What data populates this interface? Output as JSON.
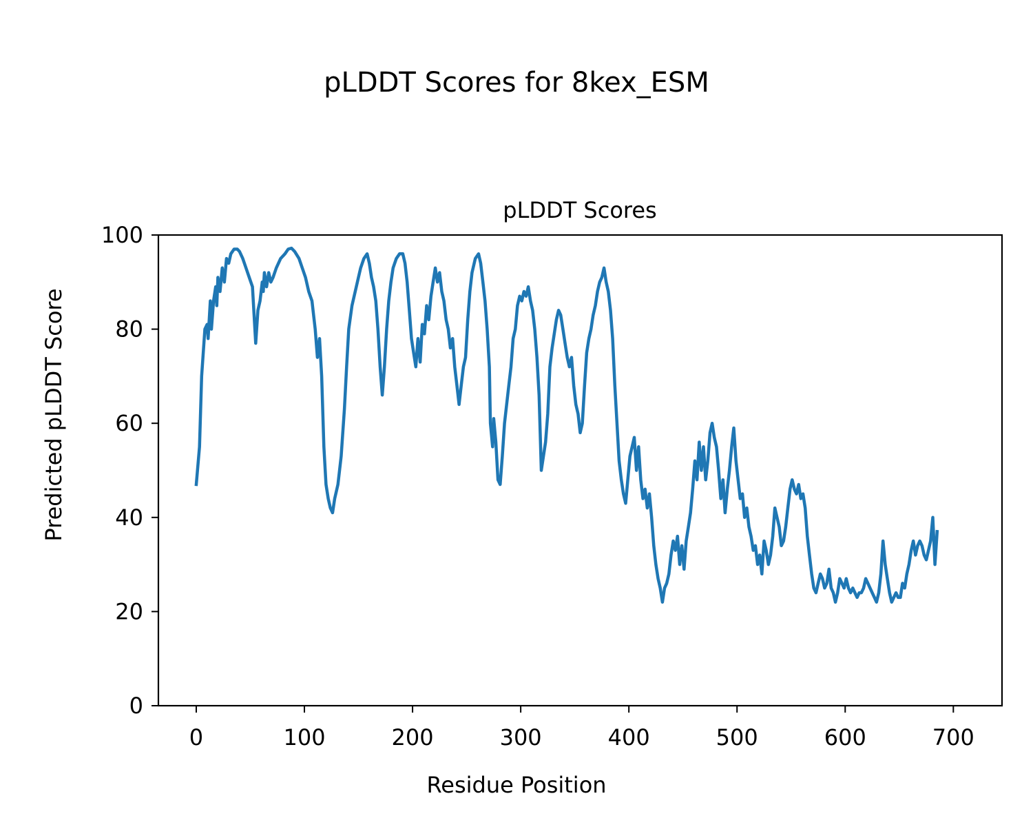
{
  "figure": {
    "suptitle": "pLDDT Scores for 8kex_ESM"
  },
  "chart_data": {
    "type": "line",
    "title": "pLDDT Scores",
    "xlabel": "Residue Position",
    "ylabel": "Predicted pLDDT Score",
    "xlim": [
      -35,
      745
    ],
    "ylim": [
      0,
      100
    ],
    "xticks": [
      0,
      100,
      200,
      300,
      400,
      500,
      600,
      700
    ],
    "yticks": [
      0,
      20,
      40,
      60,
      80,
      100
    ],
    "grid": false,
    "legend": "none",
    "series": [
      {
        "color": "#1f77b4",
        "points": [
          [
            0,
            47
          ],
          [
            3,
            55
          ],
          [
            5,
            70
          ],
          [
            8,
            80
          ],
          [
            10,
            81
          ],
          [
            11,
            78
          ],
          [
            12,
            82
          ],
          [
            13,
            86
          ],
          [
            14,
            80
          ],
          [
            16,
            86
          ],
          [
            18,
            89
          ],
          [
            19,
            85
          ],
          [
            20,
            91
          ],
          [
            22,
            88
          ],
          [
            24,
            93
          ],
          [
            26,
            90
          ],
          [
            28,
            95
          ],
          [
            30,
            94
          ],
          [
            32,
            96
          ],
          [
            35,
            97
          ],
          [
            38,
            97
          ],
          [
            40,
            96.5
          ],
          [
            43,
            95
          ],
          [
            46,
            93
          ],
          [
            49,
            91
          ],
          [
            52,
            89
          ],
          [
            55,
            77
          ],
          [
            57,
            84
          ],
          [
            59,
            86
          ],
          [
            61,
            90
          ],
          [
            62,
            88
          ],
          [
            63,
            92
          ],
          [
            65,
            89
          ],
          [
            67,
            92
          ],
          [
            69,
            90
          ],
          [
            71,
            91
          ],
          [
            74,
            93
          ],
          [
            78,
            95
          ],
          [
            82,
            96
          ],
          [
            85,
            97
          ],
          [
            88,
            97.2
          ],
          [
            91,
            96.5
          ],
          [
            95,
            95
          ],
          [
            98,
            93
          ],
          [
            101,
            91
          ],
          [
            104,
            88
          ],
          [
            107,
            86
          ],
          [
            110,
            80
          ],
          [
            112,
            74
          ],
          [
            114,
            78
          ],
          [
            116,
            70
          ],
          [
            118,
            55
          ],
          [
            120,
            47
          ],
          [
            122,
            44
          ],
          [
            124,
            42
          ],
          [
            126,
            41
          ],
          [
            128,
            44
          ],
          [
            131,
            47
          ],
          [
            134,
            53
          ],
          [
            137,
            63
          ],
          [
            139,
            72
          ],
          [
            141,
            80
          ],
          [
            144,
            85
          ],
          [
            147,
            88
          ],
          [
            150,
            91
          ],
          [
            152,
            93
          ],
          [
            155,
            95
          ],
          [
            158,
            96
          ],
          [
            160,
            94
          ],
          [
            162,
            91
          ],
          [
            164,
            89
          ],
          [
            166,
            86
          ],
          [
            168,
            80
          ],
          [
            170,
            72
          ],
          [
            172,
            66
          ],
          [
            174,
            72
          ],
          [
            176,
            80
          ],
          [
            178,
            86
          ],
          [
            180,
            90
          ],
          [
            182,
            93
          ],
          [
            185,
            95
          ],
          [
            188,
            96
          ],
          [
            191,
            96
          ],
          [
            193,
            94
          ],
          [
            195,
            90
          ],
          [
            197,
            84
          ],
          [
            199,
            78
          ],
          [
            201,
            75
          ],
          [
            203,
            72
          ],
          [
            205,
            78
          ],
          [
            207,
            73
          ],
          [
            209,
            81
          ],
          [
            211,
            79
          ],
          [
            213,
            85
          ],
          [
            215,
            82
          ],
          [
            217,
            87
          ],
          [
            219,
            90
          ],
          [
            221,
            93
          ],
          [
            223,
            90
          ],
          [
            225,
            92
          ],
          [
            227,
            88
          ],
          [
            229,
            86
          ],
          [
            231,
            82
          ],
          [
            233,
            80
          ],
          [
            235,
            76
          ],
          [
            237,
            78
          ],
          [
            239,
            72
          ],
          [
            241,
            68
          ],
          [
            243,
            64
          ],
          [
            245,
            68
          ],
          [
            247,
            72
          ],
          [
            249,
            74
          ],
          [
            251,
            82
          ],
          [
            253,
            88
          ],
          [
            255,
            92
          ],
          [
            258,
            95
          ],
          [
            261,
            96
          ],
          [
            263,
            94
          ],
          [
            265,
            90
          ],
          [
            267,
            86
          ],
          [
            269,
            80
          ],
          [
            271,
            72
          ],
          [
            272,
            60
          ],
          [
            274,
            55
          ],
          [
            275,
            61
          ],
          [
            277,
            56
          ],
          [
            279,
            48
          ],
          [
            281,
            47
          ],
          [
            283,
            53
          ],
          [
            285,
            60
          ],
          [
            287,
            64
          ],
          [
            289,
            68
          ],
          [
            291,
            72
          ],
          [
            293,
            78
          ],
          [
            295,
            80
          ],
          [
            297,
            85
          ],
          [
            299,
            87
          ],
          [
            301,
            86
          ],
          [
            303,
            88
          ],
          [
            305,
            87
          ],
          [
            307,
            89
          ],
          [
            309,
            86
          ],
          [
            311,
            84
          ],
          [
            313,
            80
          ],
          [
            315,
            74
          ],
          [
            317,
            66
          ],
          [
            319,
            50
          ],
          [
            321,
            53
          ],
          [
            323,
            56
          ],
          [
            325,
            62
          ],
          [
            327,
            72
          ],
          [
            329,
            76
          ],
          [
            331,
            79
          ],
          [
            333,
            82
          ],
          [
            335,
            84
          ],
          [
            337,
            83
          ],
          [
            339,
            80
          ],
          [
            341,
            77
          ],
          [
            343,
            74
          ],
          [
            345,
            72
          ],
          [
            347,
            74
          ],
          [
            349,
            68
          ],
          [
            351,
            64
          ],
          [
            353,
            62
          ],
          [
            355,
            58
          ],
          [
            357,
            60
          ],
          [
            359,
            68
          ],
          [
            361,
            75
          ],
          [
            363,
            78
          ],
          [
            365,
            80
          ],
          [
            367,
            83
          ],
          [
            369,
            85
          ],
          [
            371,
            88
          ],
          [
            373,
            90
          ],
          [
            375,
            91
          ],
          [
            377,
            93
          ],
          [
            379,
            90
          ],
          [
            381,
            88
          ],
          [
            383,
            84
          ],
          [
            385,
            78
          ],
          [
            387,
            68
          ],
          [
            389,
            60
          ],
          [
            391,
            52
          ],
          [
            393,
            48
          ],
          [
            395,
            45
          ],
          [
            397,
            43
          ],
          [
            399,
            48
          ],
          [
            401,
            53
          ],
          [
            403,
            55
          ],
          [
            405,
            57
          ],
          [
            407,
            50
          ],
          [
            409,
            55
          ],
          [
            411,
            48
          ],
          [
            413,
            44
          ],
          [
            415,
            46
          ],
          [
            417,
            42
          ],
          [
            419,
            45
          ],
          [
            421,
            40
          ],
          [
            423,
            34
          ],
          [
            425,
            30
          ],
          [
            427,
            27
          ],
          [
            429,
            25
          ],
          [
            431,
            22
          ],
          [
            433,
            25
          ],
          [
            435,
            26
          ],
          [
            437,
            28
          ],
          [
            439,
            32
          ],
          [
            441,
            35
          ],
          [
            443,
            33
          ],
          [
            445,
            36
          ],
          [
            447,
            30
          ],
          [
            449,
            34
          ],
          [
            451,
            29
          ],
          [
            453,
            35
          ],
          [
            455,
            38
          ],
          [
            457,
            41
          ],
          [
            459,
            46
          ],
          [
            461,
            52
          ],
          [
            463,
            48
          ],
          [
            465,
            56
          ],
          [
            467,
            50
          ],
          [
            469,
            55
          ],
          [
            471,
            48
          ],
          [
            473,
            52
          ],
          [
            475,
            58
          ],
          [
            477,
            60
          ],
          [
            479,
            57
          ],
          [
            481,
            55
          ],
          [
            483,
            50
          ],
          [
            485,
            44
          ],
          [
            487,
            48
          ],
          [
            489,
            41
          ],
          [
            491,
            46
          ],
          [
            493,
            50
          ],
          [
            495,
            55
          ],
          [
            497,
            59
          ],
          [
            499,
            52
          ],
          [
            501,
            48
          ],
          [
            503,
            44
          ],
          [
            505,
            45
          ],
          [
            507,
            40
          ],
          [
            509,
            42
          ],
          [
            511,
            38
          ],
          [
            513,
            36
          ],
          [
            515,
            33
          ],
          [
            517,
            34
          ],
          [
            519,
            30
          ],
          [
            521,
            32
          ],
          [
            523,
            28
          ],
          [
            525,
            35
          ],
          [
            527,
            33
          ],
          [
            529,
            30
          ],
          [
            531,
            32
          ],
          [
            533,
            36
          ],
          [
            535,
            42
          ],
          [
            537,
            40
          ],
          [
            539,
            38
          ],
          [
            541,
            34
          ],
          [
            543,
            35
          ],
          [
            545,
            38
          ],
          [
            547,
            42
          ],
          [
            549,
            46
          ],
          [
            551,
            48
          ],
          [
            553,
            46
          ],
          [
            555,
            45
          ],
          [
            557,
            47
          ],
          [
            559,
            44
          ],
          [
            561,
            45
          ],
          [
            563,
            42
          ],
          [
            565,
            36
          ],
          [
            567,
            32
          ],
          [
            569,
            28
          ],
          [
            571,
            25
          ],
          [
            573,
            24
          ],
          [
            575,
            26
          ],
          [
            577,
            28
          ],
          [
            579,
            27
          ],
          [
            581,
            25
          ],
          [
            583,
            26
          ],
          [
            585,
            29
          ],
          [
            587,
            25
          ],
          [
            589,
            24
          ],
          [
            591,
            22
          ],
          [
            593,
            24
          ],
          [
            595,
            27
          ],
          [
            597,
            26
          ],
          [
            599,
            25
          ],
          [
            601,
            27
          ],
          [
            603,
            25
          ],
          [
            605,
            24
          ],
          [
            607,
            25
          ],
          [
            609,
            24
          ],
          [
            611,
            23
          ],
          [
            613,
            24
          ],
          [
            615,
            24
          ],
          [
            617,
            25
          ],
          [
            619,
            27
          ],
          [
            621,
            26
          ],
          [
            623,
            25
          ],
          [
            625,
            24
          ],
          [
            627,
            23
          ],
          [
            629,
            22
          ],
          [
            631,
            24
          ],
          [
            633,
            28
          ],
          [
            635,
            35
          ],
          [
            637,
            30
          ],
          [
            639,
            27
          ],
          [
            641,
            24
          ],
          [
            643,
            22
          ],
          [
            645,
            23
          ],
          [
            647,
            24
          ],
          [
            649,
            23
          ],
          [
            651,
            23
          ],
          [
            653,
            26
          ],
          [
            655,
            25
          ],
          [
            657,
            28
          ],
          [
            659,
            30
          ],
          [
            661,
            33
          ],
          [
            663,
            35
          ],
          [
            665,
            32
          ],
          [
            667,
            34
          ],
          [
            669,
            35
          ],
          [
            671,
            34
          ],
          [
            673,
            32
          ],
          [
            675,
            31
          ],
          [
            677,
            33
          ],
          [
            679,
            35
          ],
          [
            681,
            40
          ],
          [
            683,
            30
          ],
          [
            685,
            37
          ]
        ]
      }
    ]
  }
}
